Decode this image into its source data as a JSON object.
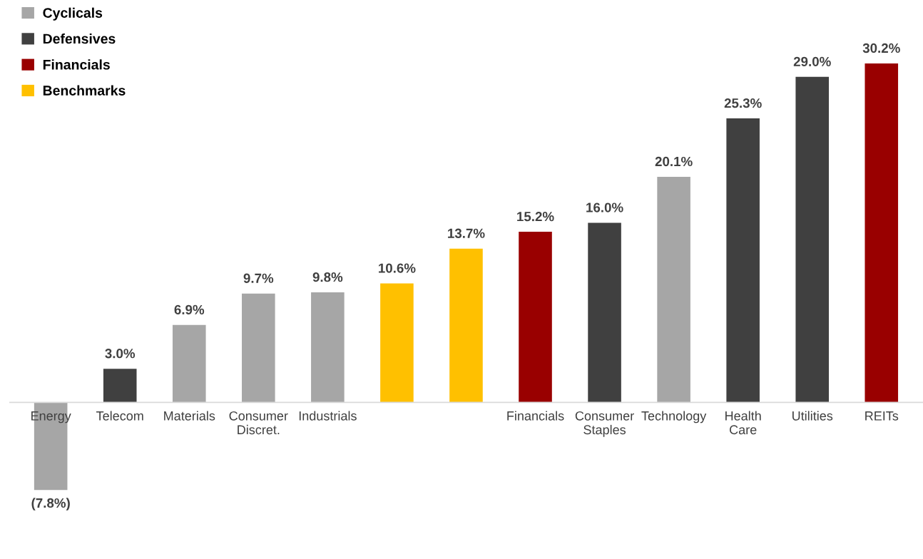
{
  "chart_data": {
    "type": "bar",
    "categories": [
      "Energy",
      "Telecom",
      "Materials",
      "Consumer\nDiscret.",
      "Industrials",
      null,
      null,
      "Financials",
      "Consumer\nStaples",
      "Technology",
      "Health\nCare",
      "Utilities",
      "REITs"
    ],
    "series": [
      {
        "name": "Cyclicals",
        "color": "#a6a6a6",
        "values": [
          -7.8,
          null,
          6.9,
          9.7,
          9.8,
          null,
          null,
          null,
          null,
          20.1,
          null,
          null,
          null
        ],
        "value_labels": [
          "(7.8%)",
          null,
          "6.9%",
          "9.7%",
          "9.8%",
          null,
          null,
          null,
          null,
          "20.1%",
          null,
          null,
          null
        ]
      },
      {
        "name": "Defensives",
        "color": "#404040",
        "values": [
          null,
          3.0,
          null,
          null,
          null,
          null,
          null,
          null,
          16.0,
          null,
          25.3,
          29.0,
          null
        ],
        "value_labels": [
          null,
          "3.0%",
          null,
          null,
          null,
          null,
          null,
          null,
          "16.0%",
          null,
          "25.3%",
          "29.0%",
          null
        ]
      },
      {
        "name": "Financials",
        "color": "#990000",
        "values": [
          null,
          null,
          null,
          null,
          null,
          null,
          null,
          15.2,
          null,
          null,
          null,
          null,
          30.2
        ],
        "value_labels": [
          null,
          null,
          null,
          null,
          null,
          null,
          null,
          "15.2%",
          null,
          null,
          null,
          null,
          "30.2%"
        ]
      },
      {
        "name": "Benchmarks",
        "color": "#ffc000",
        "values": [
          null,
          null,
          null,
          null,
          null,
          10.6,
          13.7,
          null,
          null,
          null,
          null,
          null,
          null
        ],
        "value_labels": [
          null,
          null,
          null,
          null,
          null,
          "10.6%",
          "13.7%",
          null,
          null,
          null,
          null,
          null,
          null
        ]
      }
    ],
    "legend": "top left",
    "grid": false
  }
}
